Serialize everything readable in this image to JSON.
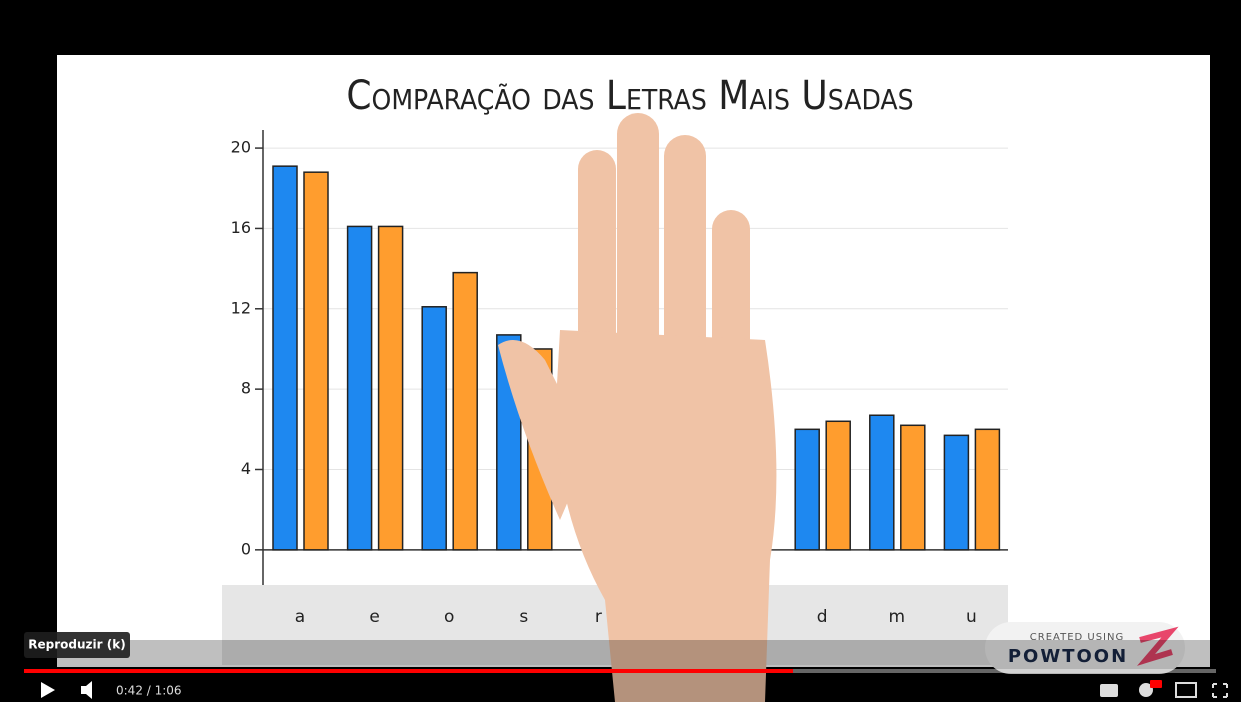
{
  "player": {
    "tooltip": "Reproduzir (k)",
    "time": "0:42 / 1:06"
  },
  "watermark": {
    "caption": "CREATED USING",
    "brand": "POWTOON"
  },
  "chart_data": {
    "type": "bar",
    "title": "Comparação das Letras Mais Usadas",
    "categories": [
      "a",
      "e",
      "o",
      "s",
      "r",
      null,
      null,
      "d",
      "m",
      "u"
    ],
    "series": [
      {
        "color": "#1e88f0",
        "values": [
          19.1,
          16.1,
          12.1,
          10.7,
          null,
          null,
          null,
          6.0,
          6.7,
          5.7
        ]
      },
      {
        "color": "#ff9d2e",
        "values": [
          18.8,
          16.1,
          13.8,
          10.0,
          null,
          null,
          null,
          6.4,
          6.2,
          6.0
        ]
      }
    ],
    "ylim": [
      -1.75,
      20.9
    ],
    "yticks": [
      0,
      4,
      8,
      12,
      16,
      20
    ],
    "grid": true
  }
}
